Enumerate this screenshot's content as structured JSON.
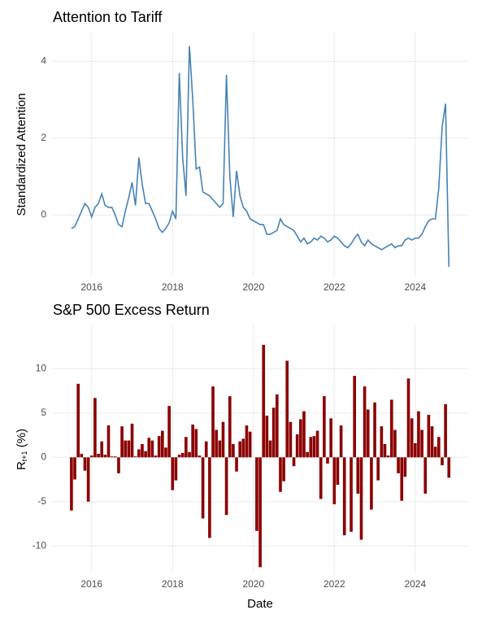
{
  "chart_data": [
    {
      "type": "line",
      "title": "Attention to Tariff",
      "y_label": [
        "Standardized Attention"
      ],
      "color": "#4682b4",
      "grid": true,
      "xlim": [
        2015.04,
        2025.29
      ],
      "xticks": [
        2016,
        2018,
        2020,
        2022,
        2024
      ],
      "ylim": [
        -1.6,
        4.75
      ],
      "yticks": [
        0,
        2,
        4
      ],
      "x": [
        2015.5,
        2015.583,
        2015.667,
        2015.75,
        2015.833,
        2015.917,
        2016,
        2016.083,
        2016.167,
        2016.25,
        2016.333,
        2016.417,
        2016.5,
        2016.583,
        2016.667,
        2016.75,
        2016.833,
        2016.917,
        2017,
        2017.083,
        2017.167,
        2017.25,
        2017.333,
        2017.417,
        2017.5,
        2017.583,
        2017.667,
        2017.75,
        2017.833,
        2017.917,
        2018,
        2018.083,
        2018.167,
        2018.25,
        2018.333,
        2018.417,
        2018.5,
        2018.583,
        2018.667,
        2018.75,
        2018.833,
        2018.917,
        2019,
        2019.083,
        2019.167,
        2019.25,
        2019.333,
        2019.417,
        2019.5,
        2019.583,
        2019.667,
        2019.75,
        2019.833,
        2019.917,
        2020,
        2020.083,
        2020.167,
        2020.25,
        2020.333,
        2020.417,
        2020.5,
        2020.583,
        2020.667,
        2020.75,
        2020.833,
        2020.917,
        2021,
        2021.083,
        2021.167,
        2021.25,
        2021.333,
        2021.417,
        2021.5,
        2021.583,
        2021.667,
        2021.75,
        2021.833,
        2021.917,
        2022,
        2022.083,
        2022.167,
        2022.25,
        2022.333,
        2022.417,
        2022.5,
        2022.583,
        2022.667,
        2022.75,
        2022.833,
        2022.917,
        2023,
        2023.083,
        2023.167,
        2023.25,
        2023.333,
        2023.417,
        2023.5,
        2023.583,
        2023.667,
        2023.75,
        2023.833,
        2023.917,
        2024,
        2024.083,
        2024.167,
        2024.25,
        2024.333,
        2024.417,
        2024.5,
        2024.583,
        2024.667,
        2024.75,
        2024.833
      ],
      "values": [
        -0.35,
        -0.3,
        -0.1,
        0.1,
        0.3,
        0.2,
        -0.05,
        0.2,
        0.3,
        0.55,
        0.25,
        0.2,
        0.2,
        0.0,
        -0.25,
        -0.3,
        0.1,
        0.45,
        0.85,
        0.25,
        1.5,
        0.8,
        0.3,
        0.3,
        0.1,
        -0.1,
        -0.35,
        -0.45,
        -0.35,
        -0.2,
        0.1,
        -0.1,
        3.7,
        1.5,
        0.5,
        4.4,
        3.0,
        1.2,
        1.25,
        0.6,
        0.55,
        0.5,
        0.4,
        0.3,
        0.2,
        0.3,
        3.65,
        1.0,
        -0.05,
        1.15,
        0.5,
        0.2,
        0.1,
        -0.1,
        -0.15,
        -0.2,
        -0.25,
        -0.25,
        -0.5,
        -0.5,
        -0.45,
        -0.4,
        -0.1,
        -0.25,
        -0.3,
        -0.35,
        -0.4,
        -0.55,
        -0.7,
        -0.6,
        -0.75,
        -0.7,
        -0.6,
        -0.65,
        -0.55,
        -0.6,
        -0.7,
        -0.65,
        -0.55,
        -0.6,
        -0.7,
        -0.8,
        -0.85,
        -0.75,
        -0.6,
        -0.5,
        -0.7,
        -0.8,
        -0.65,
        -0.75,
        -0.8,
        -0.85,
        -0.9,
        -0.85,
        -0.8,
        -0.75,
        -0.85,
        -0.8,
        -0.8,
        -0.65,
        -0.6,
        -0.65,
        -0.6,
        -0.6,
        -0.5,
        -0.3,
        -0.15,
        -0.1,
        -0.1,
        0.7,
        2.3,
        2.9,
        -1.35
      ]
    },
    {
      "type": "bar",
      "title": "S&P 500 Excess Return",
      "y_label": [
        "R",
        "t+1",
        " (%)"
      ],
      "x_label": "Date",
      "color": "#8b0000",
      "grid": true,
      "xlim": [
        2015.04,
        2025.29
      ],
      "xticks": [
        2016,
        2018,
        2020,
        2022,
        2024
      ],
      "ylim": [
        -13.1,
        14.9
      ],
      "yticks": [
        -10,
        -5,
        0,
        5,
        10
      ],
      "x": [
        2015.5,
        2015.583,
        2015.667,
        2015.75,
        2015.833,
        2015.917,
        2016,
        2016.083,
        2016.167,
        2016.25,
        2016.333,
        2016.417,
        2016.5,
        2016.583,
        2016.667,
        2016.75,
        2016.833,
        2016.917,
        2017,
        2017.083,
        2017.167,
        2017.25,
        2017.333,
        2017.417,
        2017.5,
        2017.583,
        2017.667,
        2017.75,
        2017.833,
        2017.917,
        2018,
        2018.083,
        2018.167,
        2018.25,
        2018.333,
        2018.417,
        2018.5,
        2018.583,
        2018.667,
        2018.75,
        2018.833,
        2018.917,
        2019,
        2019.083,
        2019.167,
        2019.25,
        2019.333,
        2019.417,
        2019.5,
        2019.583,
        2019.667,
        2019.75,
        2019.833,
        2019.917,
        2020,
        2020.083,
        2020.167,
        2020.25,
        2020.333,
        2020.417,
        2020.5,
        2020.583,
        2020.667,
        2020.75,
        2020.833,
        2020.917,
        2021,
        2021.083,
        2021.167,
        2021.25,
        2021.333,
        2021.417,
        2021.5,
        2021.583,
        2021.667,
        2021.75,
        2021.833,
        2021.917,
        2022,
        2022.083,
        2022.167,
        2022.25,
        2022.333,
        2022.417,
        2022.5,
        2022.583,
        2022.667,
        2022.75,
        2022.833,
        2022.917,
        2023,
        2023.083,
        2023.167,
        2023.25,
        2023.333,
        2023.417,
        2023.5,
        2023.583,
        2023.667,
        2023.75,
        2023.833,
        2023.917,
        2024,
        2024.083,
        2024.167,
        2024.25,
        2024.333,
        2024.417,
        2024.5,
        2024.583,
        2024.667,
        2024.75,
        2024.833
      ],
      "values": [
        -6.0,
        -2.5,
        8.3,
        0.4,
        -1.5,
        -5.0,
        0.2,
        6.7,
        0.4,
        1.8,
        0.3,
        3.6,
        0.1,
        0.1,
        -1.8,
        3.5,
        1.9,
        1.9,
        3.8,
        0.1,
        0.9,
        1.5,
        0.7,
        2.2,
        1.9,
        0.2,
        2.4,
        3.0,
        1.1,
        5.8,
        -3.7,
        -2.6,
        0.3,
        0.5,
        2.3,
        0.6,
        3.7,
        3.2,
        0.2,
        -6.9,
        1.8,
        -9.1,
        8.0,
        3.1,
        1.9,
        4.0,
        -6.5,
        6.9,
        1.5,
        -1.6,
        1.8,
        2.1,
        3.6,
        2.9,
        0.0,
        -8.3,
        -12.4,
        12.7,
        4.7,
        1.9,
        5.6,
        7.1,
        -3.9,
        -2.7,
        10.9,
        4.0,
        -1.0,
        2.6,
        4.3,
        5.2,
        0.6,
        2.3,
        2.4,
        3.0,
        -4.7,
        6.9,
        -0.7,
        4.4,
        -5.3,
        -3.1,
        3.6,
        -8.8,
        0.0,
        -8.4,
        9.2,
        -4.1,
        -9.3,
        8.0,
        5.4,
        -5.9,
        6.2,
        -2.6,
        3.5,
        1.5,
        0.2,
        6.5,
        3.1,
        -1.8,
        -4.9,
        -2.2,
        8.9,
        4.4,
        1.6,
        5.2,
        3.1,
        -4.1,
        4.8,
        3.5,
        1.2,
        2.3,
        -0.9,
        6.0,
        -2.3
      ]
    }
  ]
}
